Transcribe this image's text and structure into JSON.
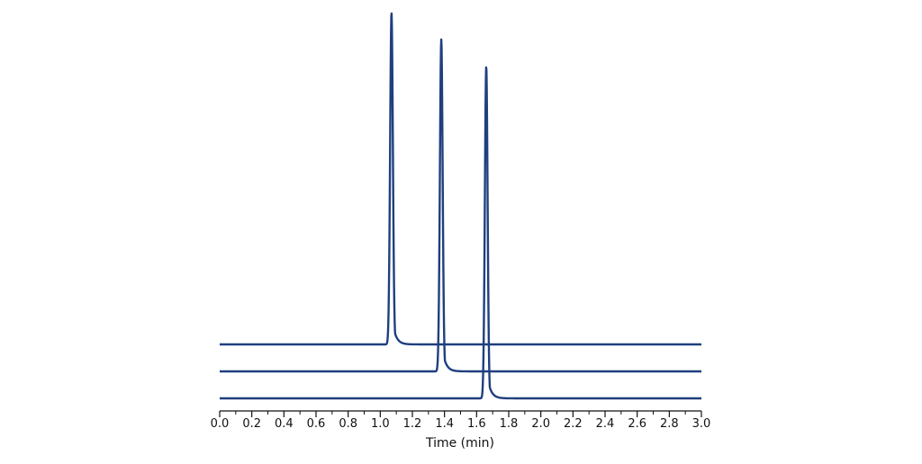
{
  "chart_data": {
    "type": "line",
    "title": "",
    "xlabel": "Time (min)",
    "ylabel": "",
    "xlim": [
      0.0,
      3.0
    ],
    "x_ticks": [
      "0.0",
      "0.2",
      "0.4",
      "0.6",
      "0.8",
      "1.0",
      "1.2",
      "1.4",
      "1.6",
      "1.8",
      "2.0",
      "2.2",
      "2.4",
      "2.6",
      "2.8",
      "3.0"
    ],
    "minor_tick_step": 0.1,
    "grid": false,
    "legend": "none",
    "y_axis_visible": false,
    "line_color": "#1f3f7f",
    "series": [
      {
        "baseline": 2.0,
        "peak_time": 1.07,
        "peak_height": 12.3,
        "sigma": 0.0085,
        "tail": 0.022
      },
      {
        "baseline": 1.0,
        "peak_time": 1.38,
        "peak_height": 12.3,
        "sigma": 0.0085,
        "tail": 0.022
      },
      {
        "baseline": 0.0,
        "peak_time": 1.66,
        "peak_height": 12.3,
        "sigma": 0.0085,
        "tail": 0.022
      }
    ]
  }
}
